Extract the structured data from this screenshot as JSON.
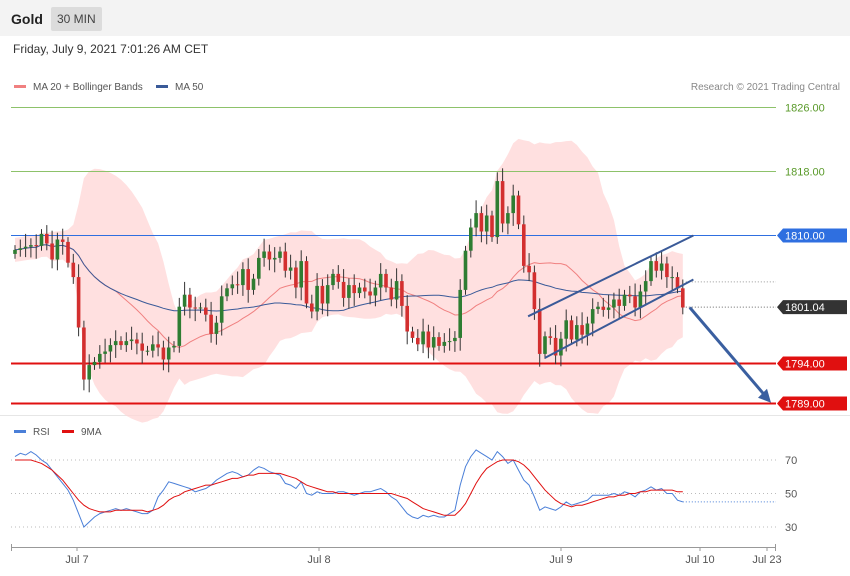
{
  "header": {
    "title": "Gold",
    "timeframe": "30 MIN",
    "timestamp": "Friday, July 9, 2021 7:01:26 AM CET"
  },
  "copyright": "Research © 2021 Trading Central",
  "colors": {
    "up": "#2e7d32",
    "down": "#d32f2f",
    "bollinger_fill": "#ffd6d6",
    "ma20": "#f08080",
    "ma50": "#3a5a98",
    "resistance_green": "#8dc26a",
    "level_blue": "#2f6fe0",
    "support_red": "#e01010",
    "channel": "#3a5a98",
    "arrow": "#3a5fa0",
    "rsi": "#4a7fd8",
    "rsi_ma": "#e01010"
  },
  "chart_data": [
    {
      "type": "candlestick",
      "legend": [
        {
          "label": "MA 20 + Bollinger Bands",
          "color": "#f08080"
        },
        {
          "label": "MA 50",
          "color": "#3a5a98"
        }
      ],
      "x_ticks": [
        "Jul 7",
        "Jul 8",
        "Jul 9",
        "Jul 10",
        "Jul 23"
      ],
      "price_range": [
        1787,
        1829
      ],
      "levels": [
        {
          "value": 1826.0,
          "label": "1826.00",
          "style": "resistance"
        },
        {
          "value": 1818.0,
          "label": "1818.00",
          "style": "resistance"
        },
        {
          "value": 1810.0,
          "label": "1810.00",
          "style": "pivot"
        },
        {
          "value": 1794.0,
          "label": "1794.00",
          "style": "support"
        },
        {
          "value": 1789.0,
          "label": "1789.00",
          "style": "support"
        }
      ],
      "last_price": {
        "value": 1801.04,
        "label": "1801.04"
      },
      "closes": [
        1808.2,
        1808.4,
        1808.6,
        1808.8,
        1808.7,
        1810.2,
        1809.0,
        1807.0,
        1809.5,
        1809.2,
        1806.6,
        1804.8,
        1798.5,
        1792.0,
        1793.8,
        1794.2,
        1795.2,
        1795.5,
        1796.3,
        1796.8,
        1796.3,
        1796.8,
        1797.0,
        1796.5,
        1795.6,
        1795.6,
        1796.4,
        1796.0,
        1794.5,
        1796.0,
        1796.2,
        1801.1,
        1802.6,
        1801.0,
        1800.9,
        1801.0,
        1800.1,
        1797.7,
        1799.1,
        1802.4,
        1803.4,
        1803.9,
        1803.8,
        1805.8,
        1803.2,
        1804.6,
        1807.2,
        1808.0,
        1807.0,
        1807.2,
        1808.0,
        1805.6,
        1806.0,
        1803.5,
        1806.8,
        1801.5,
        1800.5,
        1803.7,
        1801.5,
        1803.8,
        1805.2,
        1804.2,
        1802.2,
        1803.8,
        1802.8,
        1803.5,
        1803.0,
        1802.5,
        1803.5,
        1805.2,
        1803.5,
        1802.0,
        1804.3,
        1801.2,
        1798.0,
        1797.2,
        1796.4,
        1798.0,
        1796.0,
        1797.3,
        1796.2,
        1796.7,
        1796.8,
        1797.2,
        1803.2,
        1808.1,
        1811.0,
        1812.8,
        1810.5,
        1812.5,
        1809.8,
        1816.8,
        1811.5,
        1812.8,
        1815.0,
        1811.4,
        1806.2,
        1805.4,
        1800.8,
        1795.2,
        1797.4,
        1797.2,
        1795.0,
        1797.1,
        1799.4,
        1797.0,
        1798.8,
        1797.6,
        1799.0,
        1800.8,
        1801.1,
        1800.7,
        1801.0,
        1802.0,
        1801.2,
        1802.6,
        1802.4,
        1801.0,
        1803.0,
        1804.3,
        1806.8,
        1805.6,
        1806.5,
        1804.8,
        1804.8,
        1803.4,
        1801.0
      ]
    },
    {
      "type": "line",
      "name": "RSI",
      "legend": [
        {
          "label": "RSI",
          "color": "#4a7fd8"
        },
        {
          "label": "9MA",
          "color": "#e01010"
        }
      ],
      "y_ticks": [
        70,
        50,
        30
      ],
      "ylim": [
        23,
        82
      ],
      "rsi": [
        72,
        74,
        73,
        75,
        73,
        70,
        68,
        64,
        60,
        56,
        52,
        46,
        38,
        30,
        33,
        36,
        38,
        39,
        40,
        41,
        40,
        41,
        40,
        39,
        38,
        38,
        40,
        48,
        52,
        57,
        56,
        55,
        54,
        53,
        51,
        52,
        53,
        55,
        58,
        60,
        62,
        63,
        62,
        60,
        61,
        64,
        66,
        65,
        63,
        62,
        61,
        56,
        55,
        53,
        57,
        50,
        49,
        51,
        50,
        50,
        50,
        51,
        51,
        50,
        49,
        50,
        51,
        51,
        52,
        53,
        51,
        48,
        46,
        42,
        38,
        36,
        35,
        37,
        36,
        37,
        36,
        36,
        38,
        40,
        55,
        66,
        72,
        76,
        74,
        72,
        70,
        75,
        72,
        68,
        70,
        64,
        58,
        55,
        48,
        40,
        42,
        41,
        40,
        42,
        45,
        43,
        44,
        45,
        46,
        49,
        49,
        49,
        49,
        50,
        49,
        51,
        50,
        48,
        51,
        52,
        54,
        52,
        53,
        50,
        50,
        46,
        45
      ],
      "rsi_ma": [
        70,
        70,
        70,
        70,
        69,
        68,
        66,
        64,
        61,
        58,
        54,
        50,
        46,
        43,
        41,
        40,
        39,
        39,
        39,
        40,
        40,
        40,
        40,
        40,
        40,
        39,
        40,
        41,
        43,
        46,
        48,
        49,
        51,
        52,
        53,
        54,
        55,
        55,
        56,
        57,
        58,
        59,
        59,
        60,
        61,
        61,
        62,
        62,
        62,
        62,
        62,
        61,
        60,
        59,
        57,
        55,
        54,
        53,
        52,
        51,
        51,
        50,
        50,
        50,
        50,
        50,
        50,
        50,
        50,
        50,
        50,
        50,
        49,
        48,
        47,
        45,
        43,
        41,
        40,
        39,
        38,
        37,
        37,
        37,
        40,
        44,
        50,
        56,
        61,
        65,
        67,
        69,
        70,
        70,
        70,
        69,
        67,
        64,
        60,
        56,
        52,
        49,
        46,
        44,
        43,
        42,
        43,
        43,
        44,
        45,
        46,
        47,
        48,
        48,
        49,
        49,
        50,
        50,
        51,
        51,
        52,
        52,
        52,
        52,
        52,
        51,
        51
      ]
    }
  ]
}
